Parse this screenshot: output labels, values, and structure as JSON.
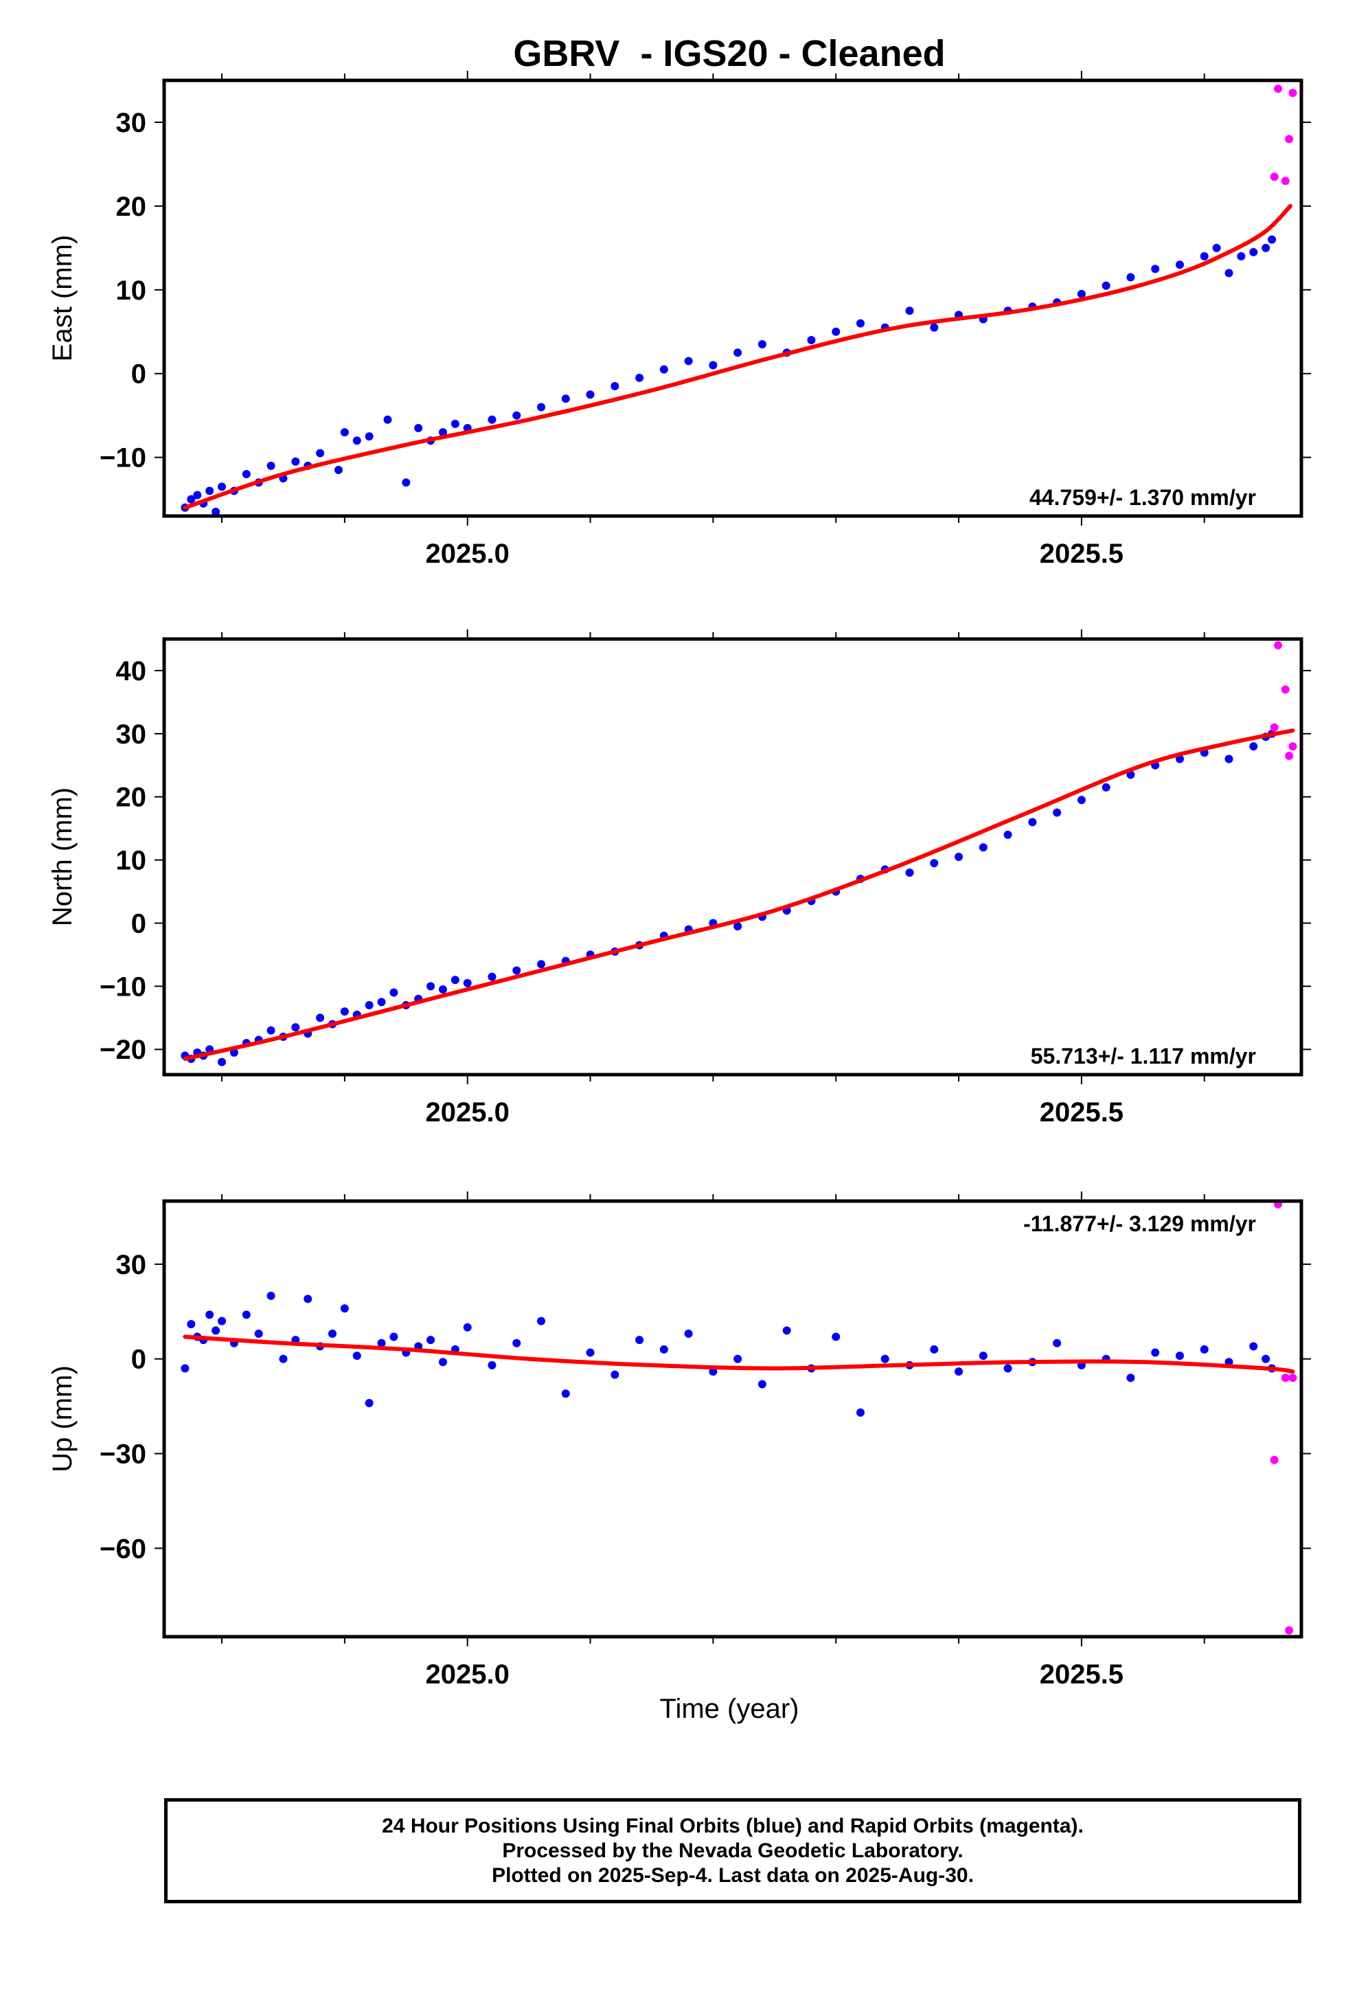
{
  "title": "GBRV  - IGS20 - Cleaned",
  "xlabel": "Time (year)",
  "footer": {
    "lines": [
      "24 Hour Positions Using Final Orbits (blue) and Rapid Orbits (magenta).",
      "Processed by the Nevada Geodetic Laboratory.",
      "Plotted on 2025-Sep-4. Last data on 2025-Aug-30."
    ]
  },
  "colors": {
    "final": "#0000ff",
    "rapid": "#ff00ff",
    "fit": "#ff0000"
  },
  "chart_data": [
    {
      "type": "scatter",
      "name": "east",
      "ylabel": "East (mm)",
      "rate": "44.759+/- 1.370 mm/yr",
      "rate_position": "bottom-right",
      "xlim": [
        2024.753,
        2025.679
      ],
      "ylim": [
        -17,
        35
      ],
      "xticks": [
        2025.0,
        2025.5
      ],
      "xticklabels": [
        "2025.0",
        "2025.5"
      ],
      "yticks": [
        -10,
        0,
        10,
        20,
        30
      ],
      "yticklabels": [
        "−10",
        "0",
        "10",
        "20",
        "30"
      ],
      "fit": {
        "x": [
          2024.77,
          2024.85,
          2024.95,
          2025.05,
          2025.15,
          2025.25,
          2025.35,
          2025.45,
          2025.52,
          2025.58,
          2025.62,
          2025.65,
          2025.67
        ],
        "y": [
          -16,
          -12,
          -8.5,
          -5.5,
          -2,
          2,
          5.5,
          7.5,
          9.5,
          12,
          14.5,
          17,
          20
        ]
      },
      "rapid": {
        "x": [
          2025.657,
          2025.66,
          2025.666,
          2025.669,
          2025.672
        ],
        "y": [
          23.5,
          34,
          23,
          28,
          33.5
        ]
      },
      "final": {
        "x": [
          2024.77,
          2024.775,
          2024.78,
          2024.785,
          2024.79,
          2024.795,
          2024.8,
          2024.81,
          2024.82,
          2024.83,
          2024.84,
          2024.85,
          2024.86,
          2024.87,
          2024.88,
          2024.895,
          2024.9,
          2024.91,
          2024.92,
          2024.935,
          2024.95,
          2024.96,
          2024.97,
          2024.98,
          2024.99,
          2025.0,
          2025.02,
          2025.04,
          2025.06,
          2025.08,
          2025.1,
          2025.12,
          2025.14,
          2025.16,
          2025.18,
          2025.2,
          2025.22,
          2025.24,
          2025.26,
          2025.28,
          2025.3,
          2025.32,
          2025.34,
          2025.36,
          2025.38,
          2025.4,
          2025.42,
          2025.44,
          2025.46,
          2025.48,
          2025.5,
          2025.52,
          2025.54,
          2025.56,
          2025.58,
          2025.6,
          2025.61,
          2025.62,
          2025.63,
          2025.64,
          2025.65,
          2025.655
        ],
        "y": [
          -16,
          -15,
          -14.5,
          -15.5,
          -14,
          -16.5,
          -13.5,
          -14,
          -12,
          -13,
          -11,
          -12.5,
          -10.5,
          -11,
          -9.5,
          -11.5,
          -7,
          -8,
          -7.5,
          -5.5,
          -13,
          -6.5,
          -8,
          -7,
          -6,
          -6.5,
          -5.5,
          -5,
          -4,
          -3,
          -2.5,
          -1.5,
          -0.5,
          0.5,
          1.5,
          1,
          2.5,
          3.5,
          2.5,
          4,
          5,
          6,
          5.5,
          7.5,
          5.5,
          7,
          6.5,
          7.5,
          8,
          8.5,
          9.5,
          10.5,
          11.5,
          12.5,
          13,
          14,
          15,
          12,
          14,
          14.5,
          15,
          16
        ]
      }
    },
    {
      "type": "scatter",
      "name": "north",
      "ylabel": "North (mm)",
      "rate": "55.713+/- 1.117 mm/yr",
      "rate_position": "bottom-right",
      "xlim": [
        2024.753,
        2025.679
      ],
      "ylim": [
        -24,
        45
      ],
      "xticks": [
        2025.0,
        2025.5
      ],
      "xticklabels": [
        "2025.0",
        "2025.5"
      ],
      "yticks": [
        -20,
        -10,
        0,
        10,
        20,
        30,
        40
      ],
      "yticklabels": [
        "−20",
        "−10",
        "0",
        "10",
        "20",
        "30",
        "40"
      ],
      "fit": {
        "x": [
          2024.77,
          2024.85,
          2024.95,
          2025.05,
          2025.15,
          2025.25,
          2025.35,
          2025.45,
          2025.55,
          2025.62,
          2025.672
        ],
        "y": [
          -21.5,
          -18,
          -13,
          -8,
          -3,
          2,
          9,
          17,
          25,
          28.5,
          30.5
        ]
      },
      "rapid": {
        "x": [
          2025.657,
          2025.66,
          2025.666,
          2025.669,
          2025.672
        ],
        "y": [
          31,
          44,
          37,
          26.5,
          28
        ]
      },
      "final": {
        "x": [
          2024.77,
          2024.775,
          2024.78,
          2024.785,
          2024.79,
          2024.8,
          2024.81,
          2024.82,
          2024.83,
          2024.84,
          2024.85,
          2024.86,
          2024.87,
          2024.88,
          2024.89,
          2024.9,
          2024.91,
          2024.92,
          2024.93,
          2024.94,
          2024.95,
          2024.96,
          2024.97,
          2024.98,
          2024.99,
          2025.0,
          2025.02,
          2025.04,
          2025.06,
          2025.08,
          2025.1,
          2025.12,
          2025.14,
          2025.16,
          2025.18,
          2025.2,
          2025.22,
          2025.24,
          2025.26,
          2025.28,
          2025.3,
          2025.32,
          2025.34,
          2025.36,
          2025.38,
          2025.4,
          2025.42,
          2025.44,
          2025.46,
          2025.48,
          2025.5,
          2025.52,
          2025.54,
          2025.56,
          2025.58,
          2025.6,
          2025.62,
          2025.64,
          2025.65,
          2025.655
        ],
        "y": [
          -21,
          -21.5,
          -20.5,
          -21,
          -20,
          -22,
          -20.5,
          -19,
          -18.5,
          -17,
          -18,
          -16.5,
          -17.5,
          -15,
          -16,
          -14,
          -14.5,
          -13,
          -12.5,
          -11,
          -13,
          -12,
          -10,
          -10.5,
          -9,
          -9.5,
          -8.5,
          -7.5,
          -6.5,
          -6,
          -5,
          -4.5,
          -3.5,
          -2,
          -1,
          0,
          -0.5,
          1,
          2,
          3.5,
          5,
          7,
          8.5,
          8,
          9.5,
          10.5,
          12,
          14,
          16,
          17.5,
          19.5,
          21.5,
          23.5,
          25,
          26,
          27,
          26,
          28,
          29.5,
          30
        ]
      }
    },
    {
      "type": "scatter",
      "name": "up",
      "ylabel": "Up (mm)",
      "rate": "-11.877+/- 3.129 mm/yr",
      "rate_position": "top-right",
      "xlim": [
        2024.753,
        2025.679
      ],
      "ylim": [
        -88,
        50
      ],
      "xticks": [
        2025.0,
        2025.5
      ],
      "xticklabels": [
        "2025.0",
        "2025.5"
      ],
      "yticks": [
        -60,
        -30,
        0,
        30
      ],
      "yticklabels": [
        "−60",
        "−30",
        "0",
        "30"
      ],
      "fit": {
        "x": [
          2024.77,
          2024.85,
          2024.95,
          2025.05,
          2025.15,
          2025.25,
          2025.35,
          2025.45,
          2025.55,
          2025.65,
          2025.672
        ],
        "y": [
          7,
          5,
          3,
          0,
          -2,
          -3,
          -2,
          -1,
          -1,
          -3,
          -4
        ]
      },
      "rapid": {
        "x": [
          2025.657,
          2025.66,
          2025.666,
          2025.669,
          2025.672
        ],
        "y": [
          -32,
          49,
          -6,
          -86,
          -6
        ]
      },
      "final": {
        "x": [
          2024.77,
          2024.775,
          2024.78,
          2024.785,
          2024.79,
          2024.795,
          2024.8,
          2024.81,
          2024.82,
          2024.83,
          2024.84,
          2024.85,
          2024.86,
          2024.87,
          2024.88,
          2024.89,
          2024.9,
          2024.91,
          2024.92,
          2024.93,
          2024.94,
          2024.95,
          2024.96,
          2024.97,
          2024.98,
          2024.99,
          2025.0,
          2025.02,
          2025.04,
          2025.06,
          2025.08,
          2025.1,
          2025.12,
          2025.14,
          2025.16,
          2025.18,
          2025.2,
          2025.22,
          2025.24,
          2025.26,
          2025.28,
          2025.3,
          2025.32,
          2025.34,
          2025.36,
          2025.38,
          2025.4,
          2025.42,
          2025.44,
          2025.46,
          2025.48,
          2025.5,
          2025.52,
          2025.54,
          2025.56,
          2025.58,
          2025.6,
          2025.62,
          2025.64,
          2025.65,
          2025.655
        ],
        "y": [
          -3,
          11,
          7,
          6,
          14,
          9,
          12,
          5,
          14,
          8,
          20,
          0,
          6,
          19,
          4,
          8,
          16,
          1,
          -14,
          5,
          7,
          2,
          4,
          6,
          -1,
          3,
          10,
          -2,
          5,
          12,
          -11,
          2,
          -5,
          6,
          3,
          8,
          -4,
          0,
          -8,
          9,
          -3,
          7,
          -17,
          0,
          -2,
          3,
          -4,
          1,
          -3,
          -1,
          5,
          -2,
          0,
          -6,
          2,
          1,
          3,
          -1,
          4,
          0,
          -3
        ]
      }
    }
  ]
}
